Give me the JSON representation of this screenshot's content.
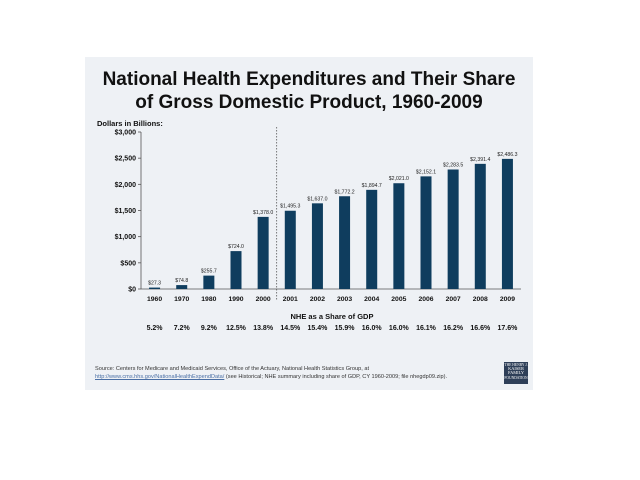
{
  "title_line1": "National Health Expenditures and Their Share",
  "title_line2": "of Gross Domestic Product, 1960-2009",
  "source_text": "Source: Centers for Medicare and Medicaid Services, Office of the Actuary, National Health Statistics Group, at",
  "source_link": "http://www.cms.hhs.gov/NationalHealthExpendData/",
  "source_tail": " (see Historical; NHE summary including share of GDP, CY 1960-2009; file nhegdp09.zip).",
  "logo": {
    "line1": "THE HENRY J.",
    "line2": "KAISER",
    "line3": "FAMILY",
    "line4": "FOUNDATION"
  },
  "colors": {
    "bar": "#0f3d5e",
    "slide_bg": "#eef1f5"
  },
  "chart_data": {
    "type": "bar",
    "ylabel": "Dollars in Billions:",
    "ylim": [
      0,
      3000
    ],
    "yticks": [
      0,
      500,
      1000,
      1500,
      2000,
      2500,
      3000
    ],
    "ytick_labels": [
      "$0",
      "$500",
      "$1,000",
      "$1,500",
      "$2,000",
      "$2,500",
      "$3,000"
    ],
    "categories": [
      "1960",
      "1970",
      "1980",
      "1990",
      "2000",
      "2001",
      "2002",
      "2003",
      "2004",
      "2005",
      "2006",
      "2007",
      "2008",
      "2009"
    ],
    "values": [
      27.3,
      74.8,
      255.7,
      724.0,
      1378.0,
      1495.3,
      1637.0,
      1772.2,
      1894.7,
      2021.0,
      2152.1,
      2283.5,
      2391.4,
      2486.3
    ],
    "data_labels": [
      "$27.3",
      "$74.8",
      "$255.7",
      "$724.0",
      "$1,378.0",
      "$1,495.3",
      "$1,637.0",
      "$1,772.2",
      "$1,894.7",
      "$2,021.0",
      "$2,152.1",
      "$2,283.5",
      "$2,391.4",
      "$2,486.3"
    ],
    "divider_after": "2000",
    "gdp_share_title": "NHE as a Share of GDP",
    "gdp_share": [
      "5.2%",
      "7.2%",
      "9.2%",
      "12.5%",
      "13.8%",
      "14.5%",
      "15.4%",
      "15.9%",
      "16.0%",
      "16.0%",
      "16.1%",
      "16.2%",
      "16.6%",
      "17.6%"
    ]
  }
}
